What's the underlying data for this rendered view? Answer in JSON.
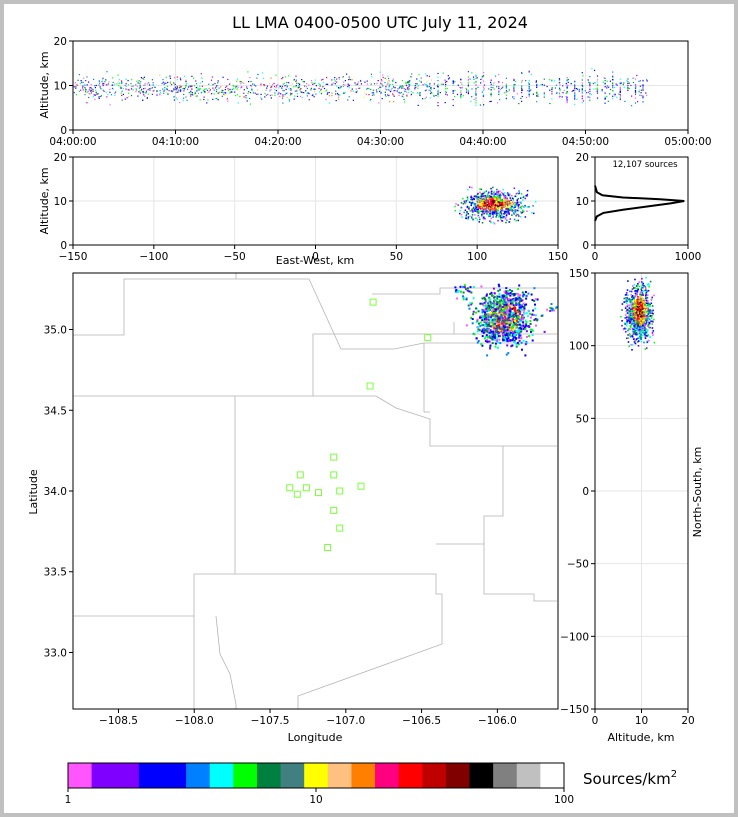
{
  "title": "LL LMA 0400-0500 UTC July 11, 2024",
  "colors": {
    "border": "#c0c0c0",
    "grid": "#e6e6e6",
    "county": "#b4b4b4",
    "station": "#7cff3c"
  },
  "chart_data": [
    {
      "id": "time-height",
      "type": "scatter",
      "ylabel": "Altitude, km",
      "ylim": [
        0,
        20
      ],
      "yticks": [
        "0",
        "10",
        "20"
      ],
      "xticks": [
        "04:00:00",
        "04:10:00",
        "04:20:00",
        "04:30:00",
        "04:40:00",
        "04:50:00",
        "05:00:00"
      ],
      "xlim_minutes": [
        0,
        60
      ],
      "activity_minutes": [
        0,
        56
      ],
      "altitude_core_km": [
        7,
        12
      ]
    },
    {
      "id": "ew-height",
      "type": "scatter",
      "xlabel": "East-West, km",
      "ylabel": "Altitude, km",
      "xlim": [
        -150,
        150
      ],
      "ylim": [
        0,
        20
      ],
      "xticks": [
        "−150",
        "−100",
        "−50",
        "0",
        "50",
        "100",
        "150"
      ],
      "yticks": [
        "0",
        "10",
        "20"
      ]
    },
    {
      "id": "altitude-histogram",
      "type": "line",
      "annotation": "12,107 sources",
      "xlim": [
        0,
        1000
      ],
      "ylim": [
        0,
        20
      ],
      "xticks": [
        "0",
        "1000"
      ],
      "yticks": [
        "0",
        "10",
        "20"
      ],
      "profile": [
        [
          0,
          5.5
        ],
        [
          20,
          6.5
        ],
        [
          90,
          7.3
        ],
        [
          300,
          8.0
        ],
        [
          650,
          9.0
        ],
        [
          820,
          9.5
        ],
        [
          960,
          10.0
        ],
        [
          700,
          10.4
        ],
        [
          300,
          10.8
        ],
        [
          80,
          11.3
        ],
        [
          20,
          12.0
        ],
        [
          0,
          13.5
        ]
      ]
    },
    {
      "id": "plan-view",
      "type": "scatter",
      "xlabel": "Longitude",
      "ylabel": "Latitude",
      "xlim": [
        -108.8,
        -105.6
      ],
      "ylim": [
        32.65,
        35.35
      ],
      "xticks": [
        "−108.5",
        "−108.0",
        "−107.5",
        "−107.0",
        "−106.5",
        "−106.0"
      ],
      "yticks": [
        "33.0",
        "33.5",
        "34.0",
        "34.5",
        "35.0"
      ],
      "stations": [
        [
          -106.82,
          35.17
        ],
        [
          -106.46,
          34.95
        ],
        [
          -106.84,
          34.65
        ],
        [
          -107.08,
          34.21
        ],
        [
          -107.3,
          34.1
        ],
        [
          -107.08,
          34.1
        ],
        [
          -107.37,
          34.02
        ],
        [
          -107.26,
          34.02
        ],
        [
          -107.32,
          33.98
        ],
        [
          -107.18,
          33.99
        ],
        [
          -107.04,
          34.0
        ],
        [
          -106.9,
          34.03
        ],
        [
          -107.08,
          33.88
        ],
        [
          -107.04,
          33.77
        ],
        [
          -107.12,
          33.65
        ]
      ]
    },
    {
      "id": "ns-height",
      "type": "scatter",
      "xlabel": "Altitude, km",
      "ylabel": "North-South, km",
      "xlim": [
        0,
        20
      ],
      "ylim": [
        -150,
        150
      ],
      "xticks": [
        "0",
        "10",
        "20"
      ],
      "yticks": [
        "−150",
        "−100",
        "−50",
        "0",
        "50",
        "100",
        "150"
      ]
    }
  ],
  "colorbar": {
    "label": "Sources/km",
    "label_sup": "2",
    "tick_labels": [
      "1",
      "10",
      "100"
    ],
    "colors": [
      "#ff55ff",
      "#8000ff",
      "#8000ff",
      "#0000ff",
      "#0000ff",
      "#0080ff",
      "#00ffff",
      "#00ff00",
      "#008040",
      "#408080",
      "#ffff00",
      "#ffc080",
      "#ff8000",
      "#ff0080",
      "#ff0000",
      "#c00000",
      "#800000",
      "#000000",
      "#808080",
      "#c0c0c0",
      "#ffffff"
    ]
  }
}
